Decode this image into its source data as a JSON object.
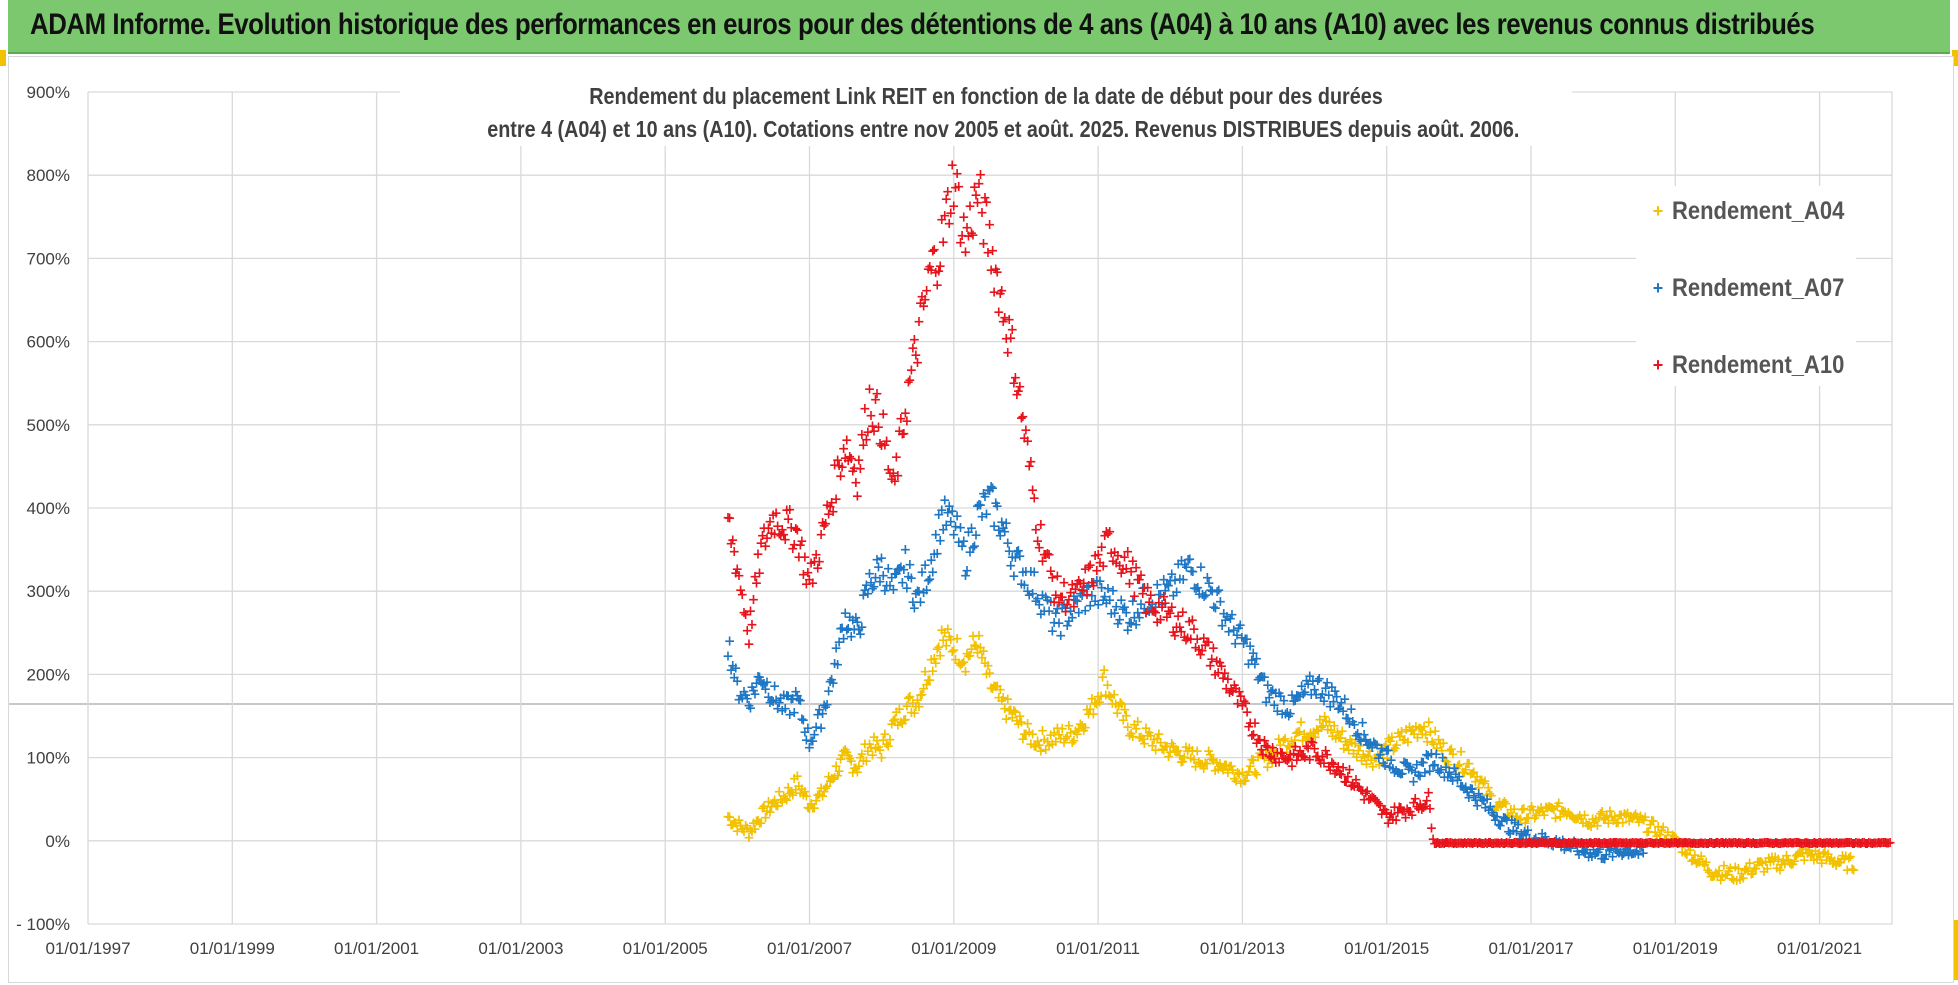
{
  "header": {
    "title": "ADAM Informe. Evolution historique des performances en euros pour des détentions de 4 ans (A04) à 10 ans (A10) avec les revenus connus distribués"
  },
  "chart_data": {
    "type": "scatter",
    "title_line1": "Rendement du placement Link REIT en fonction de la date de début pour des durées",
    "title_line2": "entre 4 (A04) et 10 ans (A10). Cotations entre nov 2005 et août. 2025. Revenus DISTRIBUES depuis août. 2006.",
    "xlim": [
      "1997-01-01",
      "2022-01-01"
    ],
    "ylim": [
      -100,
      900
    ],
    "y_ticks": [
      -100,
      0,
      100,
      200,
      300,
      400,
      500,
      600,
      700,
      800,
      900
    ],
    "y_tick_labels": [
      "- 100%",
      "0%",
      "100%",
      "200%",
      "300%",
      "400%",
      "500%",
      "600%",
      "700%",
      "800%",
      "900%"
    ],
    "x_tick_labels": [
      "01/01/1997",
      "01/01/1999",
      "01/01/2001",
      "01/01/2003",
      "01/01/2005",
      "01/01/2007",
      "01/01/2009",
      "01/01/2011",
      "01/01/2013",
      "01/01/2015",
      "01/01/2017",
      "01/01/2019",
      "01/01/2021"
    ],
    "grid": true,
    "legend_position": "top-right",
    "series": [
      {
        "name": "Rendement_A04",
        "color": "#f2c100",
        "points": [
          [
            "2005-11-15",
            30
          ],
          [
            "2006-01-01",
            20
          ],
          [
            "2006-03-01",
            12
          ],
          [
            "2006-05-01",
            30
          ],
          [
            "2006-07-01",
            45
          ],
          [
            "2006-09-01",
            55
          ],
          [
            "2006-11-01",
            70
          ],
          [
            "2007-01-01",
            45
          ],
          [
            "2007-03-01",
            55
          ],
          [
            "2007-05-01",
            80
          ],
          [
            "2007-07-01",
            100
          ],
          [
            "2007-09-01",
            90
          ],
          [
            "2007-11-01",
            115
          ],
          [
            "2008-01-01",
            110
          ],
          [
            "2008-03-01",
            140
          ],
          [
            "2008-05-01",
            160
          ],
          [
            "2008-07-01",
            170
          ],
          [
            "2008-09-01",
            210
          ],
          [
            "2008-11-01",
            245
          ],
          [
            "2009-01-01",
            235
          ],
          [
            "2009-03-01",
            220
          ],
          [
            "2009-05-01",
            240
          ],
          [
            "2009-07-01",
            190
          ],
          [
            "2009-09-01",
            165
          ],
          [
            "2009-11-01",
            150
          ],
          [
            "2010-01-01",
            130
          ],
          [
            "2010-03-01",
            120
          ],
          [
            "2010-06-01",
            125
          ],
          [
            "2010-09-01",
            130
          ],
          [
            "2010-12-01",
            160
          ],
          [
            "2011-02-01",
            195
          ],
          [
            "2011-04-01",
            165
          ],
          [
            "2011-06-01",
            140
          ],
          [
            "2011-09-01",
            125
          ],
          [
            "2012-01-01",
            110
          ],
          [
            "2012-05-01",
            100
          ],
          [
            "2012-09-01",
            95
          ],
          [
            "2013-01-01",
            80
          ],
          [
            "2013-06-01",
            105
          ],
          [
            "2013-10-01",
            130
          ],
          [
            "2014-03-01",
            140
          ],
          [
            "2014-07-01",
            115
          ],
          [
            "2014-11-01",
            100
          ],
          [
            "2015-03-01",
            120
          ],
          [
            "2015-07-01",
            140
          ],
          [
            "2015-11-01",
            105
          ],
          [
            "2016-03-01",
            90
          ],
          [
            "2016-07-01",
            45
          ],
          [
            "2016-11-01",
            30
          ],
          [
            "2017-03-01",
            35
          ],
          [
            "2017-07-01",
            38
          ],
          [
            "2017-11-01",
            25
          ],
          [
            "2018-03-01",
            30
          ],
          [
            "2018-07-01",
            25
          ],
          [
            "2018-11-01",
            10
          ],
          [
            "2019-03-01",
            -10
          ],
          [
            "2019-07-01",
            -35
          ],
          [
            "2019-11-01",
            -40
          ],
          [
            "2020-03-01",
            -30
          ],
          [
            "2020-07-01",
            -25
          ],
          [
            "2020-11-01",
            -15
          ],
          [
            "2021-03-01",
            -22
          ],
          [
            "2021-07-01",
            -28
          ]
        ]
      },
      {
        "name": "Rendement_A07",
        "color": "#1f77c4",
        "points": [
          [
            "2005-11-15",
            240
          ],
          [
            "2006-01-01",
            185
          ],
          [
            "2006-03-01",
            170
          ],
          [
            "2006-05-01",
            200
          ],
          [
            "2006-07-01",
            175
          ],
          [
            "2006-09-01",
            160
          ],
          [
            "2006-11-01",
            170
          ],
          [
            "2007-01-01",
            120
          ],
          [
            "2007-03-01",
            150
          ],
          [
            "2007-05-01",
            200
          ],
          [
            "2007-07-01",
            270
          ],
          [
            "2007-09-01",
            250
          ],
          [
            "2007-11-01",
            310
          ],
          [
            "2008-01-01",
            330
          ],
          [
            "2008-03-01",
            300
          ],
          [
            "2008-05-01",
            330
          ],
          [
            "2008-07-01",
            290
          ],
          [
            "2008-09-01",
            330
          ],
          [
            "2008-11-01",
            390
          ],
          [
            "2009-01-01",
            380
          ],
          [
            "2009-03-01",
            340
          ],
          [
            "2009-05-01",
            390
          ],
          [
            "2009-07-01",
            410
          ],
          [
            "2009-09-01",
            380
          ],
          [
            "2009-11-01",
            340
          ],
          [
            "2010-01-01",
            320
          ],
          [
            "2010-03-01",
            300
          ],
          [
            "2010-06-01",
            260
          ],
          [
            "2010-09-01",
            280
          ],
          [
            "2010-12-01",
            300
          ],
          [
            "2011-03-01",
            290
          ],
          [
            "2011-06-01",
            270
          ],
          [
            "2011-09-01",
            290
          ],
          [
            "2012-01-01",
            300
          ],
          [
            "2012-04-01",
            330
          ],
          [
            "2012-08-01",
            300
          ],
          [
            "2012-11-01",
            260
          ],
          [
            "2013-02-01",
            230
          ],
          [
            "2013-05-01",
            180
          ],
          [
            "2013-09-01",
            160
          ],
          [
            "2014-01-01",
            190
          ],
          [
            "2014-05-01",
            170
          ],
          [
            "2014-09-01",
            130
          ],
          [
            "2015-01-01",
            100
          ],
          [
            "2015-05-01",
            80
          ],
          [
            "2015-09-01",
            100
          ],
          [
            "2015-12-01",
            80
          ],
          [
            "2016-03-01",
            60
          ],
          [
            "2016-06-01",
            40
          ],
          [
            "2016-09-01",
            20
          ],
          [
            "2017-01-01",
            5
          ],
          [
            "2017-05-01",
            0
          ],
          [
            "2017-09-01",
            -10
          ],
          [
            "2018-01-01",
            -15
          ],
          [
            "2018-05-01",
            -10
          ],
          [
            "2018-08-01",
            -15
          ]
        ]
      },
      {
        "name": "Rendement_A10",
        "color": "#e8141c",
        "points": [
          [
            "2005-11-15",
            385
          ],
          [
            "2006-01-01",
            330
          ],
          [
            "2006-03-01",
            250
          ],
          [
            "2006-05-01",
            350
          ],
          [
            "2006-07-01",
            390
          ],
          [
            "2006-09-01",
            380
          ],
          [
            "2006-11-01",
            370
          ],
          [
            "2007-01-01",
            310
          ],
          [
            "2007-03-01",
            360
          ],
          [
            "2007-05-01",
            420
          ],
          [
            "2007-07-01",
            480
          ],
          [
            "2007-09-01",
            440
          ],
          [
            "2007-11-01",
            530
          ],
          [
            "2008-01-01",
            500
          ],
          [
            "2008-03-01",
            420
          ],
          [
            "2008-05-01",
            520
          ],
          [
            "2008-07-01",
            600
          ],
          [
            "2008-09-01",
            680
          ],
          [
            "2008-11-01",
            720
          ],
          [
            "2009-01-01",
            800
          ],
          [
            "2009-03-01",
            720
          ],
          [
            "2009-05-01",
            780
          ],
          [
            "2009-07-01",
            720
          ],
          [
            "2009-09-01",
            650
          ],
          [
            "2009-11-01",
            580
          ],
          [
            "2010-01-01",
            480
          ],
          [
            "2010-03-01",
            380
          ],
          [
            "2010-06-01",
            300
          ],
          [
            "2010-09-01",
            290
          ],
          [
            "2010-12-01",
            320
          ],
          [
            "2011-03-01",
            360
          ],
          [
            "2011-06-01",
            330
          ],
          [
            "2011-09-01",
            290
          ],
          [
            "2012-01-01",
            270
          ],
          [
            "2012-05-01",
            250
          ],
          [
            "2012-09-01",
            210
          ],
          [
            "2013-01-01",
            160
          ],
          [
            "2013-05-01",
            110
          ],
          [
            "2013-09-01",
            100
          ],
          [
            "2014-01-01",
            110
          ],
          [
            "2014-05-01",
            90
          ],
          [
            "2014-09-01",
            60
          ],
          [
            "2015-01-01",
            30
          ],
          [
            "2015-05-01",
            40
          ],
          [
            "2015-08-01",
            50
          ],
          [
            "2015-09-01",
            -2
          ],
          [
            "2016-06-01",
            -2
          ],
          [
            "2017-06-01",
            -2
          ],
          [
            "2018-06-01",
            -2
          ],
          [
            "2019-06-01",
            -2
          ],
          [
            "2020-06-01",
            -2
          ],
          [
            "2021-06-01",
            -2
          ],
          [
            "2022-01-01",
            -2
          ]
        ]
      }
    ]
  }
}
